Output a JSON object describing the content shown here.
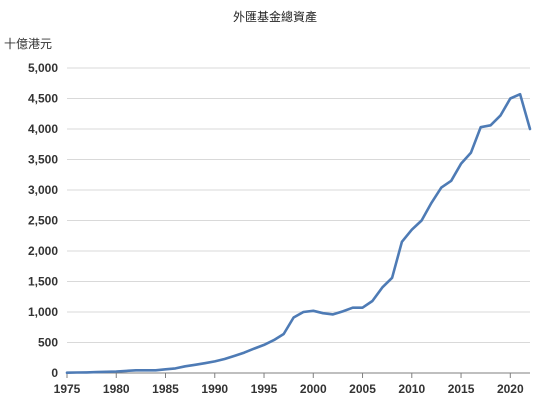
{
  "chart_data": {
    "type": "line",
    "title": "外匯基金總資產",
    "unit_label": "十億港元",
    "xlabel": "",
    "ylabel": "十億港元",
    "xlim": [
      1975,
      2022
    ],
    "ylim": [
      0,
      5000
    ],
    "x_ticks": [
      1975,
      1980,
      1985,
      1990,
      1995,
      2000,
      2005,
      2010,
      2015,
      2020
    ],
    "y_ticks": [
      0,
      500,
      1000,
      1500,
      2000,
      2500,
      3000,
      3500,
      4000,
      4500,
      5000
    ],
    "y_tick_labels": [
      "0",
      "500",
      "1,000",
      "1,500",
      "2,000",
      "2,500",
      "3,000",
      "3,500",
      "4,000",
      "4,500",
      "5,000"
    ],
    "grid": true,
    "legend": "none",
    "line_color": "#4e7bb5",
    "series": [
      {
        "x": [
          1975,
          1976,
          1977,
          1978,
          1979,
          1980,
          1981,
          1982,
          1983,
          1984,
          1985,
          1986,
          1987,
          1988,
          1989,
          1990,
          1991,
          1992,
          1993,
          1994,
          1995,
          1996,
          1997,
          1998,
          1999,
          2000,
          2001,
          2002,
          2003,
          2004,
          2005,
          2006,
          2007,
          2008,
          2009,
          2010,
          2011,
          2012,
          2013,
          2014,
          2015,
          2016,
          2017,
          2018,
          2019,
          2020,
          2021,
          2022
        ],
        "values": [
          5,
          8,
          10,
          15,
          20,
          25,
          35,
          45,
          45,
          45,
          60,
          75,
          110,
          135,
          160,
          190,
          230,
          280,
          335,
          400,
          460,
          540,
          640,
          910,
          1000,
          1020,
          980,
          960,
          1010,
          1070,
          1070,
          1180,
          1400,
          1560,
          2150,
          2350,
          2500,
          2790,
          3040,
          3150,
          3430,
          3610,
          4030,
          4060,
          4220,
          4500,
          4570,
          4000
        ]
      }
    ]
  }
}
